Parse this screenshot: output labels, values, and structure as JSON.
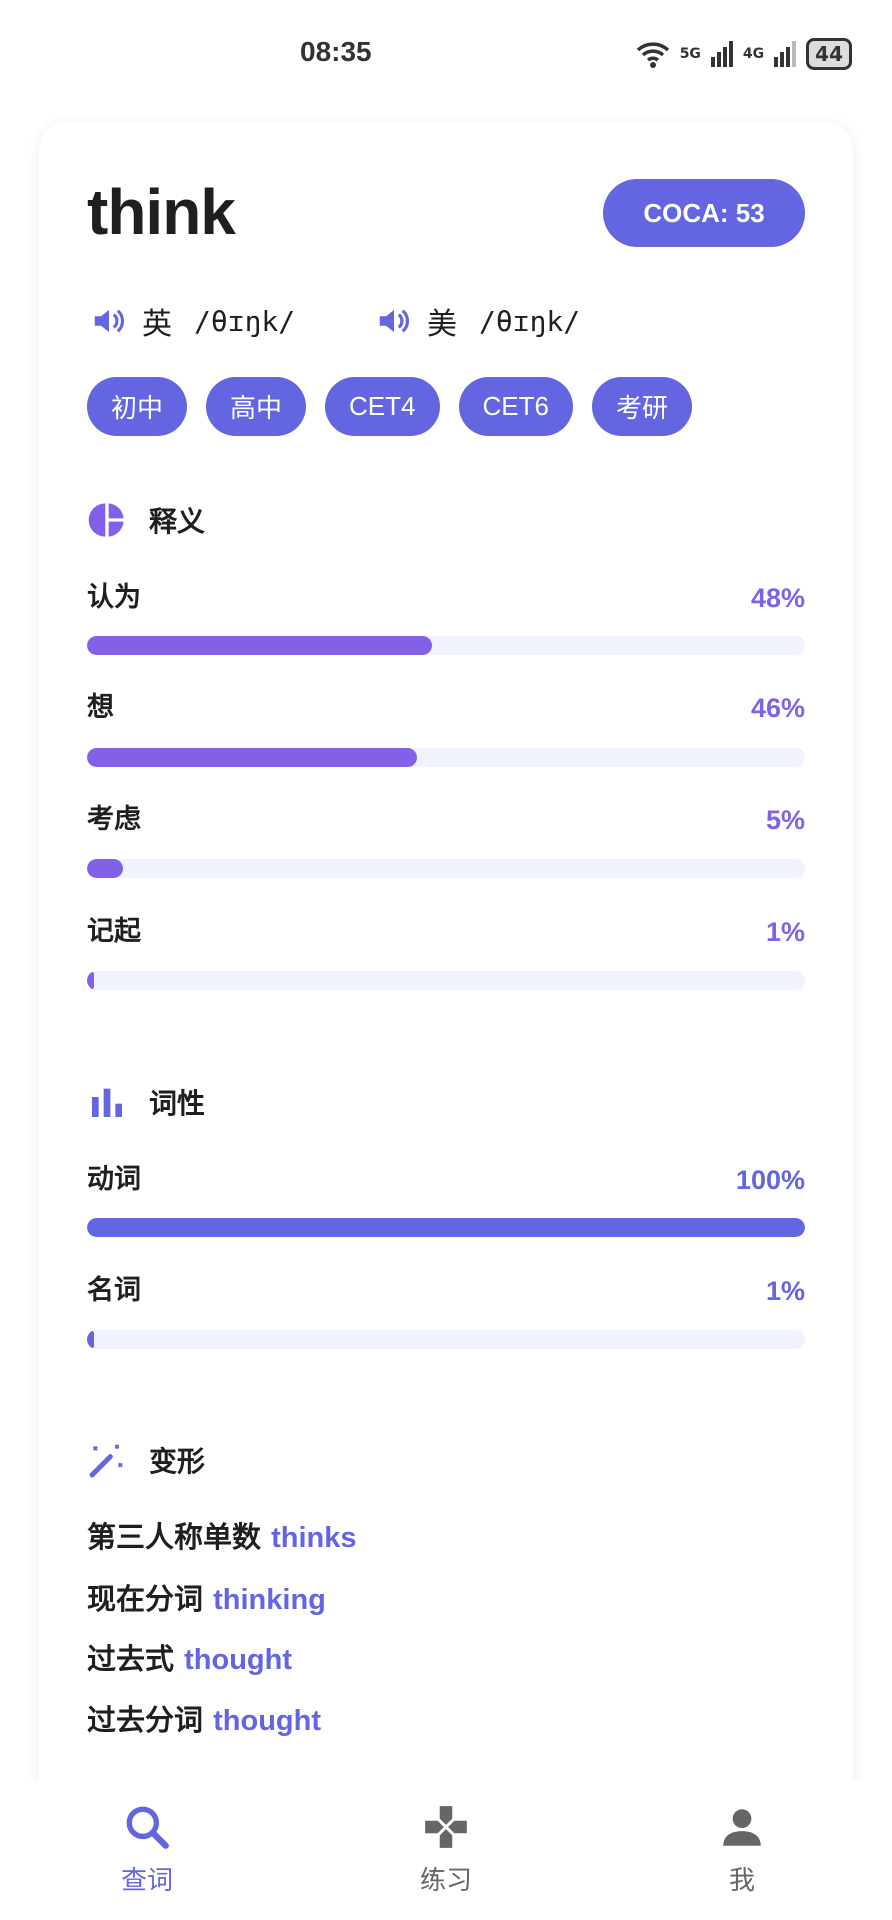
{
  "status_bar": {
    "time": "08:35",
    "network1": "5G",
    "network2": "4G",
    "battery": "44"
  },
  "word": {
    "headword": "think",
    "coca": "COCA: 53",
    "pronunciations": [
      {
        "region": "英",
        "ipa": "/θɪŋk/"
      },
      {
        "region": "美",
        "ipa": "/θɪŋk/"
      }
    ],
    "tags": [
      "初中",
      "高中",
      "CET4",
      "CET6",
      "考研"
    ]
  },
  "meanings": {
    "title": "释义",
    "color": "#8360e8",
    "items": [
      {
        "label": "认为",
        "value": "48%",
        "percent": 48
      },
      {
        "label": "想",
        "value": "46%",
        "percent": 46
      },
      {
        "label": "考虑",
        "value": "5%",
        "percent": 5
      },
      {
        "label": "记起",
        "value": "1%",
        "percent": 1
      }
    ]
  },
  "pos": {
    "title": "词性",
    "color": "#6366e0",
    "items": [
      {
        "label": "动词",
        "value": "100%",
        "percent": 100
      },
      {
        "label": "名词",
        "value": "1%",
        "percent": 1
      }
    ]
  },
  "forms": {
    "title": "变形",
    "items": [
      {
        "label": "第三人称单数",
        "word": "thinks"
      },
      {
        "label": "现在分词",
        "word": "thinking"
      },
      {
        "label": "过去式",
        "word": "thought"
      },
      {
        "label": "过去分词",
        "word": "thought"
      }
    ]
  },
  "bottom_nav": {
    "items": [
      {
        "label": "查词",
        "icon": "search-icon",
        "active": true
      },
      {
        "label": "练习",
        "icon": "gamepad-icon",
        "active": false
      },
      {
        "label": "我",
        "icon": "person-icon",
        "active": false
      }
    ]
  },
  "colors": {
    "accent": "#6366e0",
    "meaning": "#8360e8",
    "track": "#f0f3fc"
  }
}
